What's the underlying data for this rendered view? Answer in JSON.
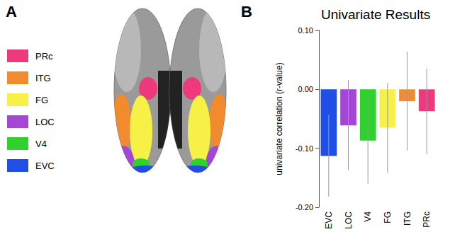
{
  "panels": {
    "a": {
      "label": "A",
      "regions": [
        {
          "name": "PRc",
          "color": "#ee3a7c"
        },
        {
          "name": "ITG",
          "color": "#f28a2e"
        },
        {
          "name": "FG",
          "color": "#f7f046"
        },
        {
          "name": "LOC",
          "color": "#a446d6"
        },
        {
          "name": "V4",
          "color": "#2fd12f"
        },
        {
          "name": "EVC",
          "color": "#1f4fe6"
        }
      ]
    },
    "b": {
      "label": "B"
    }
  },
  "chart_data": {
    "type": "bar",
    "title": "Univariate Results",
    "ylabel": "univariate correlation (r-value)",
    "categories": [
      "EVC",
      "LOC",
      "V4",
      "FG",
      "ITG",
      "PRc"
    ],
    "values": [
      -0.113,
      -0.061,
      -0.087,
      -0.065,
      -0.02,
      -0.037
    ],
    "errors": [
      [
        -0.182,
        -0.043
      ],
      [
        -0.137,
        0.016
      ],
      [
        -0.16,
        -0.015
      ],
      [
        -0.142,
        0.011
      ],
      [
        -0.104,
        0.064
      ],
      [
        -0.11,
        0.035
      ]
    ],
    "colors": [
      "#1f4fe6",
      "#a446d6",
      "#2fd12f",
      "#f7f046",
      "#f28a2e",
      "#ee3a7c"
    ],
    "ylim": [
      -0.2,
      0.1
    ],
    "yticks": [
      {
        "value": -0.2,
        "label": "-0.20"
      },
      {
        "value": -0.1,
        "label": "-0.10"
      },
      {
        "value": 0,
        "label": "0.00"
      },
      {
        "value": 0.1,
        "label": "0.10"
      }
    ],
    "grid": false
  }
}
